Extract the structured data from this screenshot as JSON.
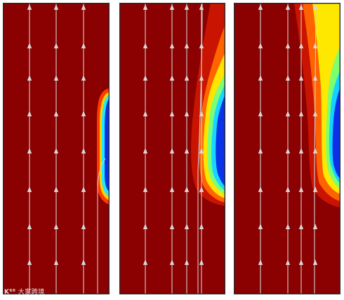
{
  "colors": {
    "background_field": "#8b0000",
    "streamline": "#d0cfcf",
    "frame": "#2b2b2b",
    "colormap": [
      "#00008f",
      "#0050ff",
      "#00dfff",
      "#7fff7f",
      "#ffe600",
      "#ff6a00",
      "#c81000",
      "#8b0000"
    ]
  },
  "panels": [
    {
      "name": "panel-1"
    },
    {
      "name": "panel-2"
    },
    {
      "name": "panel-3"
    }
  ],
  "watermark": {
    "logo": "K⁶⁰",
    "text": "大家跨境"
  }
}
